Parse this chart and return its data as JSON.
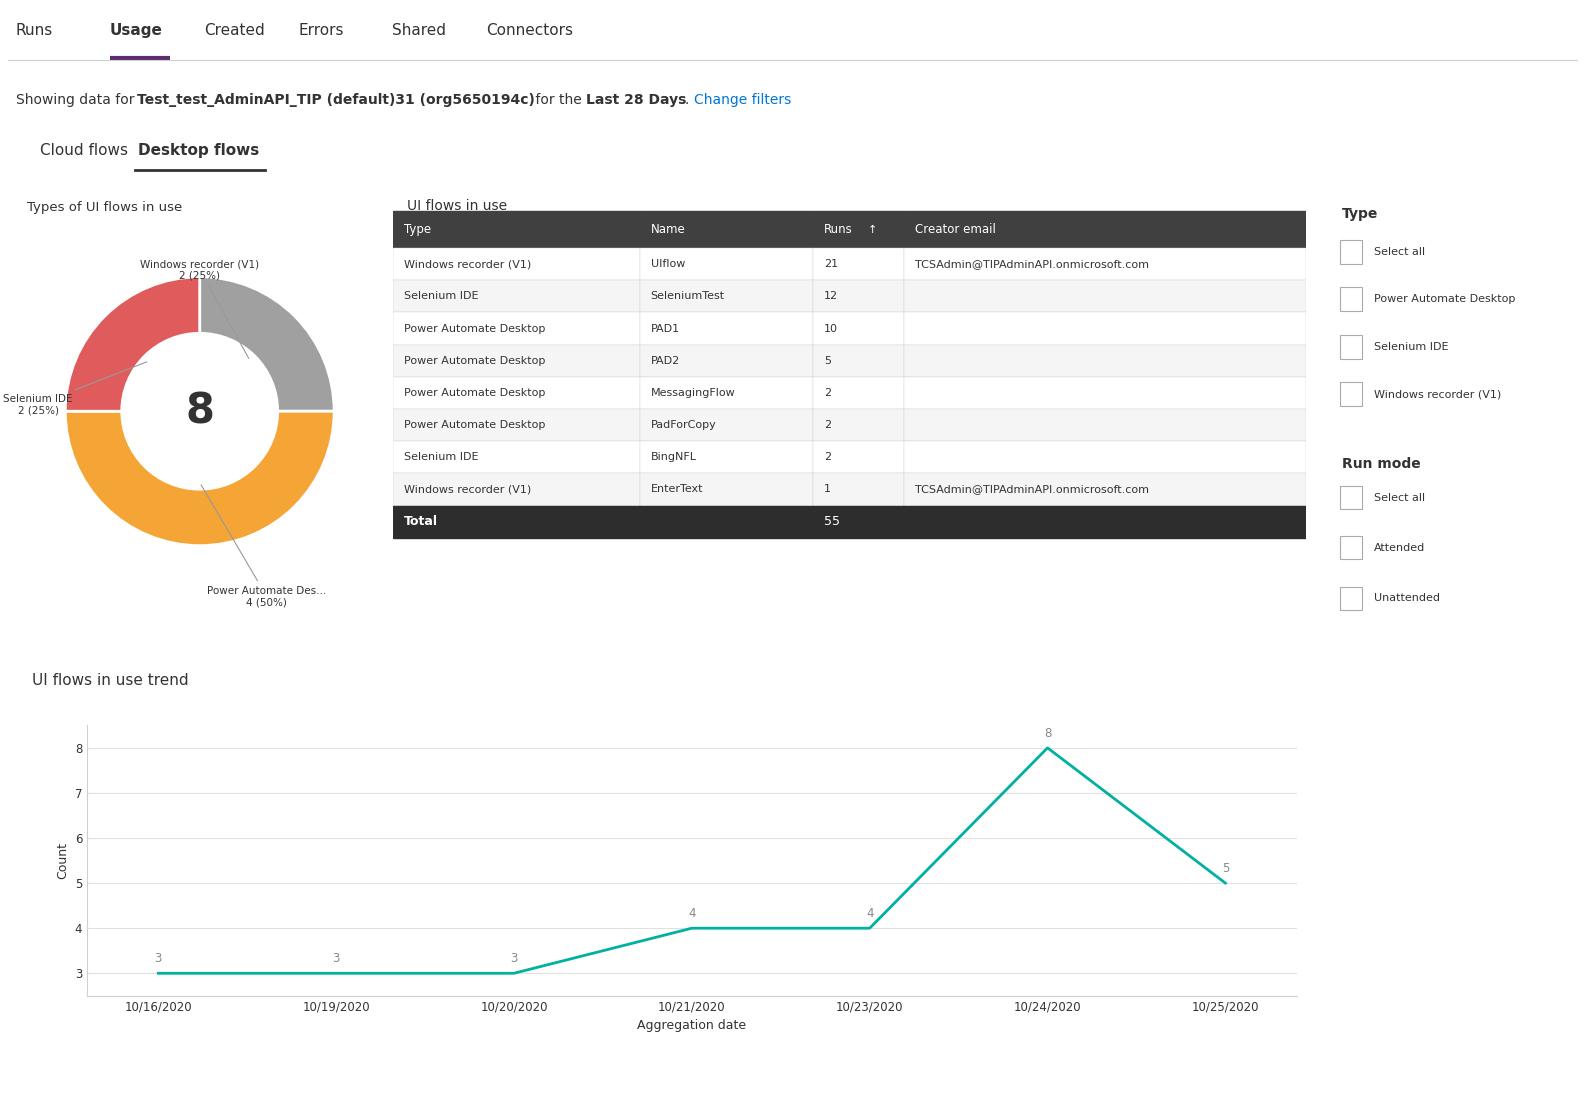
{
  "bg_color": "#ffffff",
  "nav_tabs": [
    "Runs",
    "Usage",
    "Created",
    "Errors",
    "Shared",
    "Connectors"
  ],
  "nav_active": "Usage",
  "nav_active_color": "#5c2d6e",
  "subtitle_text": "Showing data for ",
  "subtitle_bold1": "Test_test_AdminAPI_TIP (default)31 (org5650194c)",
  "subtitle_mid": " for the ",
  "subtitle_bold2": "Last 28 Days",
  "subtitle_end": ". ",
  "subtitle_link": "Change filters",
  "tab_cloud": "Cloud flows",
  "tab_desktop": "Desktop flows",
  "pie_title": "Types of UI flows in use",
  "pie_center_label": "8",
  "pie_slices": [
    {
      "label": "Windows recorder (V1)\n2 (25%)",
      "value": 2,
      "color": "#a0a0a0"
    },
    {
      "label": "Power Automate Des...\n4 (50%)",
      "value": 4,
      "color": "#f4a535"
    },
    {
      "label": "Selenium IDE\n2 (25%)",
      "value": 2,
      "color": "#e05c5c"
    }
  ],
  "table_title": "UI flows in use",
  "table_header_bg": "#404040",
  "table_header_color": "#ffffff",
  "table_header_cols": [
    "Type",
    "Name",
    "Runs",
    "Creator email"
  ],
  "table_rows": [
    [
      "Windows recorder (V1)",
      "UIflow",
      "21",
      "TCSAdmin@TIPAdminAPI.onmicrosoft.com"
    ],
    [
      "Selenium IDE",
      "SeleniumTest",
      "12",
      ""
    ],
    [
      "Power Automate Desktop",
      "PAD1",
      "10",
      ""
    ],
    [
      "Power Automate Desktop",
      "PAD2",
      "5",
      ""
    ],
    [
      "Power Automate Desktop",
      "MessagingFlow",
      "2",
      ""
    ],
    [
      "Power Automate Desktop",
      "PadForCopy",
      "2",
      ""
    ],
    [
      "Selenium IDE",
      "BingNFL",
      "2",
      ""
    ],
    [
      "Windows recorder (V1)",
      "EnterText",
      "1",
      "TCSAdmin@TIPAdminAPI.onmicrosoft.com"
    ]
  ],
  "table_total_label": "Total",
  "table_total_value": "55",
  "table_total_bg": "#2d2d2d",
  "table_total_color": "#ffffff",
  "filter_title": "Type",
  "filter_items": [
    "Select all",
    "Power Automate Desktop",
    "Selenium IDE",
    "Windows recorder (V1)"
  ],
  "run_mode_title": "Run mode",
  "run_mode_items": [
    "Select all",
    "Attended",
    "Unattended"
  ],
  "trend_title": "UI flows in use trend",
  "trend_x": [
    "10/16/2020",
    "10/19/2020",
    "10/20/2020",
    "10/21/2020",
    "10/23/2020",
    "10/24/2020",
    "10/25/2020"
  ],
  "trend_y": [
    3,
    3,
    3,
    4,
    4,
    8,
    5
  ],
  "trend_color": "#00b0a0",
  "trend_ylabel": "Count",
  "trend_xlabel": "Aggregation date",
  "trend_ylim": [
    2.5,
    8.5
  ],
  "border_color": "#d0d0d0",
  "row_alt_color": "#f5f5f5",
  "text_color": "#333333",
  "link_color": "#0078d4",
  "grid_color": "#e0e0e0"
}
